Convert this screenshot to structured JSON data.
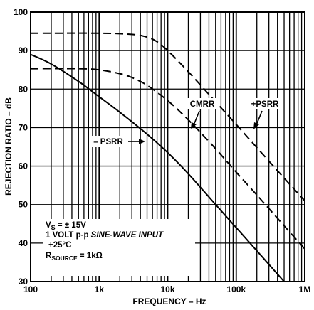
{
  "chart_data": {
    "type": "line",
    "title": "",
    "xlabel": "FREQUENCY – Hz",
    "ylabel": "REJECTION RATIO – dB",
    "x_scale": "log",
    "xlim": [
      100,
      1000000
    ],
    "ylim": [
      30,
      100
    ],
    "grid": true,
    "x_tick_values": [
      100,
      1000,
      10000,
      100000,
      1000000
    ],
    "x_tick_labels": [
      "100",
      "1k",
      "10k",
      "100k",
      "1M"
    ],
    "y_ticks": [
      30,
      40,
      50,
      60,
      70,
      80,
      90,
      100
    ],
    "series": [
      {
        "name": "CMRR",
        "style": "dashed",
        "points": [
          [
            100,
            94.5
          ],
          [
            1000,
            94.5
          ],
          [
            3000,
            94.2
          ],
          [
            5000,
            93.5
          ],
          [
            7000,
            92.3
          ],
          [
            10000,
            90
          ],
          [
            20000,
            84.5
          ],
          [
            50000,
            76.7
          ],
          [
            100000,
            70.8
          ],
          [
            200000,
            64.8
          ],
          [
            500000,
            56.9
          ],
          [
            1000000,
            51
          ]
        ]
      },
      {
        "name": "+PSRR",
        "style": "dashed",
        "points": [
          [
            100,
            85.3
          ],
          [
            500,
            85.3
          ],
          [
            1000,
            85
          ],
          [
            2000,
            84
          ],
          [
            3000,
            83
          ],
          [
            5000,
            81
          ],
          [
            10000,
            77
          ],
          [
            20000,
            72
          ],
          [
            50000,
            64.5
          ],
          [
            100000,
            58.4
          ],
          [
            200000,
            52.5
          ],
          [
            500000,
            44.5
          ],
          [
            1000000,
            38.5
          ]
        ]
      },
      {
        "name": "–PSRR",
        "style": "solid",
        "points": [
          [
            100,
            89
          ],
          [
            200,
            86.5
          ],
          [
            500,
            82
          ],
          [
            1000,
            78
          ],
          [
            2000,
            74
          ],
          [
            5000,
            68.3
          ],
          [
            10000,
            63.5
          ],
          [
            20000,
            58
          ],
          [
            50000,
            50
          ],
          [
            100000,
            44
          ],
          [
            200000,
            38
          ],
          [
            500000,
            30
          ]
        ]
      }
    ],
    "annotations": {
      "cmrr_label": "CMRR",
      "psrr_pos_label": "+PSRR",
      "psrr_neg_label": "– PSRR",
      "vs_line_base": "V",
      "vs_line_sub": "S",
      "vs_line_value": " = ± 15V",
      "input_line_a": "1 VOLT p-p ",
      "input_line_b": "SINE-WAVE INPUT",
      "temp_line": "+25°C",
      "rsource_base": "R",
      "rsource_sub": "SOURCE",
      "rsource_value": " = 1kΩ"
    }
  }
}
